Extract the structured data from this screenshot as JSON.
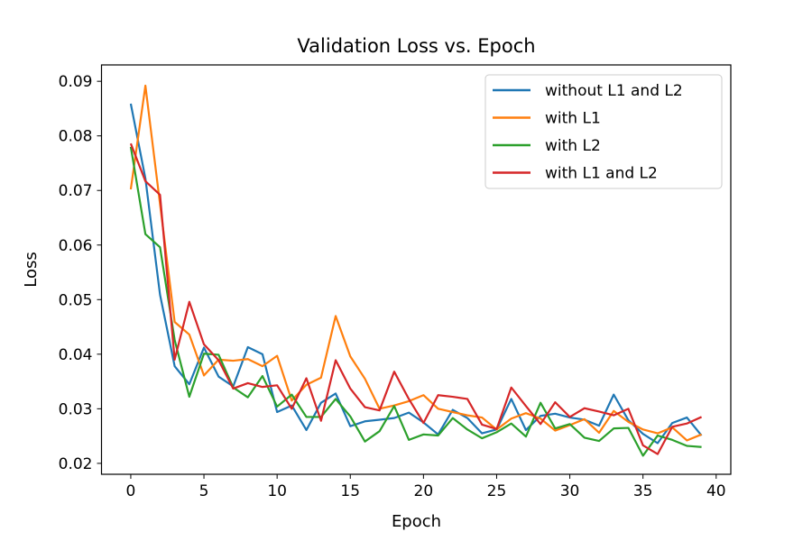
{
  "chart_data": {
    "type": "line",
    "title": "Validation Loss vs. Epoch",
    "xlabel": "Epoch",
    "ylabel": "Loss",
    "xlim": [
      -2,
      41
    ],
    "ylim": [
      0.018,
      0.093
    ],
    "xticks": [
      0,
      5,
      10,
      15,
      20,
      25,
      30,
      35,
      40
    ],
    "yticks": [
      0.02,
      0.03,
      0.04,
      0.05,
      0.06,
      0.07,
      0.08,
      0.09
    ],
    "ytick_labels": [
      "0.02",
      "0.03",
      "0.04",
      "0.05",
      "0.06",
      "0.07",
      "0.08",
      "0.09"
    ],
    "grid": false,
    "legend_position": "top-right",
    "x": [
      0,
      1,
      2,
      3,
      4,
      5,
      6,
      7,
      8,
      9,
      10,
      11,
      12,
      13,
      14,
      15,
      16,
      17,
      18,
      19,
      20,
      21,
      22,
      23,
      24,
      25,
      26,
      27,
      28,
      29,
      30,
      31,
      32,
      33,
      34,
      35,
      36,
      37,
      38,
      39
    ],
    "series": [
      {
        "name": "without L1 and L2",
        "color": "#1f77b4",
        "values": [
          0.0859,
          0.0722,
          0.0509,
          0.0378,
          0.0345,
          0.0412,
          0.0359,
          0.0341,
          0.0413,
          0.04,
          0.0294,
          0.0306,
          0.0261,
          0.0311,
          0.0328,
          0.0268,
          0.0277,
          0.028,
          0.0283,
          0.0293,
          0.0275,
          0.0253,
          0.0298,
          0.0283,
          0.0255,
          0.0262,
          0.0318,
          0.0261,
          0.0287,
          0.0291,
          0.0284,
          0.028,
          0.0269,
          0.0326,
          0.0279,
          0.0254,
          0.0237,
          0.0274,
          0.0284,
          0.0251
        ]
      },
      {
        "name": "with L1",
        "color": "#ff7f0e",
        "values": [
          0.0702,
          0.0892,
          0.0675,
          0.0459,
          0.0436,
          0.0361,
          0.039,
          0.0388,
          0.0391,
          0.0378,
          0.0397,
          0.0315,
          0.0344,
          0.0357,
          0.047,
          0.0396,
          0.0355,
          0.03,
          0.0306,
          0.0314,
          0.0325,
          0.03,
          0.0294,
          0.0288,
          0.0284,
          0.0262,
          0.0282,
          0.0292,
          0.0282,
          0.026,
          0.027,
          0.0281,
          0.0256,
          0.0296,
          0.0276,
          0.0262,
          0.0255,
          0.0266,
          0.0242,
          0.0253
        ]
      },
      {
        "name": "with L2",
        "color": "#2ca02c",
        "values": [
          0.078,
          0.062,
          0.0596,
          0.0426,
          0.0322,
          0.0401,
          0.0399,
          0.0339,
          0.0321,
          0.036,
          0.0304,
          0.0326,
          0.0285,
          0.0285,
          0.0318,
          0.0286,
          0.024,
          0.0259,
          0.0305,
          0.0243,
          0.0253,
          0.0251,
          0.0283,
          0.0262,
          0.0246,
          0.0257,
          0.0273,
          0.0249,
          0.0311,
          0.0264,
          0.0272,
          0.0247,
          0.0241,
          0.0264,
          0.0265,
          0.0214,
          0.0251,
          0.0243,
          0.0232,
          0.023
        ]
      },
      {
        "name": "with L1 and L2",
        "color": "#d62728",
        "values": [
          0.0786,
          0.0717,
          0.0692,
          0.039,
          0.0496,
          0.0418,
          0.0389,
          0.0337,
          0.0347,
          0.034,
          0.0343,
          0.03,
          0.0356,
          0.0278,
          0.0389,
          0.0337,
          0.0303,
          0.0297,
          0.0368,
          0.0318,
          0.0274,
          0.0325,
          0.0322,
          0.0318,
          0.0271,
          0.0263,
          0.0339,
          0.0305,
          0.0272,
          0.0312,
          0.0285,
          0.0301,
          0.0295,
          0.0288,
          0.03,
          0.0233,
          0.0217,
          0.0267,
          0.0273,
          0.0285
        ]
      }
    ]
  }
}
